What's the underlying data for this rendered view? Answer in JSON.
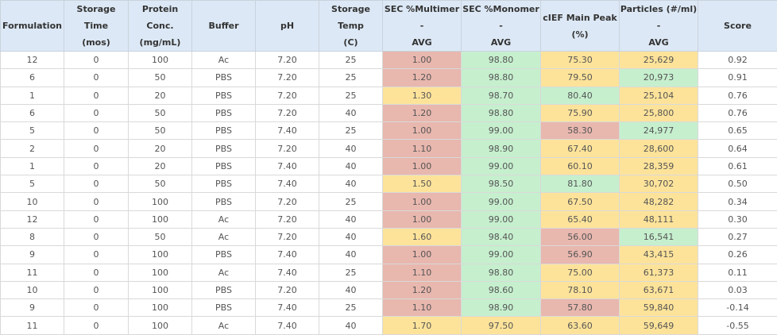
{
  "table": {
    "header": [
      [
        "Formulation"
      ],
      [
        "Storage Time",
        "(mos)"
      ],
      [
        "Protein Conc.",
        "(mg/mL)"
      ],
      [
        "Buffer"
      ],
      [
        "pH"
      ],
      [
        "Storage Temp",
        "(C)"
      ],
      [
        "SEC %Multimer -",
        "AVG"
      ],
      [
        "SEC %Monomer -",
        "AVG"
      ],
      [
        "cIEF Main Peak",
        "(%)"
      ],
      [
        "Particles (#/ml) -",
        "AVG"
      ],
      [
        "Score"
      ]
    ],
    "rows": [
      [
        "12",
        "0",
        "100",
        "Ac",
        "7.20",
        "25",
        "1.00",
        "98.80",
        "75.30",
        "25,629",
        "0.92"
      ],
      [
        "6",
        "0",
        "50",
        "PBS",
        "7.20",
        "25",
        "1.20",
        "98.80",
        "79.50",
        "20,973",
        "0.91"
      ],
      [
        "1",
        "0",
        "20",
        "PBS",
        "7.20",
        "25",
        "1.30",
        "98.70",
        "80.40",
        "25,104",
        "0.76"
      ],
      [
        "6",
        "0",
        "50",
        "PBS",
        "7.20",
        "40",
        "1.20",
        "98.80",
        "75.90",
        "25,800",
        "0.76"
      ],
      [
        "5",
        "0",
        "50",
        "PBS",
        "7.40",
        "25",
        "1.00",
        "99.00",
        "58.30",
        "24,977",
        "0.65"
      ],
      [
        "2",
        "0",
        "20",
        "PBS",
        "7.20",
        "40",
        "1.10",
        "98.90",
        "67.40",
        "28,600",
        "0.64"
      ],
      [
        "1",
        "0",
        "20",
        "PBS",
        "7.40",
        "40",
        "1.00",
        "99.00",
        "60.10",
        "28,359",
        "0.61"
      ],
      [
        "5",
        "0",
        "50",
        "PBS",
        "7.40",
        "40",
        "1.50",
        "98.50",
        "81.80",
        "30,702",
        "0.50"
      ],
      [
        "10",
        "0",
        "100",
        "PBS",
        "7.20",
        "25",
        "1.00",
        "99.00",
        "67.50",
        "48,282",
        "0.34"
      ],
      [
        "12",
        "0",
        "100",
        "Ac",
        "7.20",
        "40",
        "1.00",
        "99.00",
        "65.40",
        "48,111",
        "0.30"
      ],
      [
        "8",
        "0",
        "50",
        "Ac",
        "7.20",
        "40",
        "1.60",
        "98.40",
        "56.00",
        "16,541",
        "0.27"
      ],
      [
        "9",
        "0",
        "100",
        "PBS",
        "7.40",
        "40",
        "1.00",
        "99.00",
        "56.90",
        "43,415",
        "0.26"
      ],
      [
        "11",
        "0",
        "100",
        "Ac",
        "7.40",
        "25",
        "1.10",
        "98.80",
        "75.00",
        "61,373",
        "0.11"
      ],
      [
        "10",
        "0",
        "100",
        "PBS",
        "7.20",
        "40",
        "1.20",
        "98.60",
        "78.10",
        "63,671",
        "0.03"
      ],
      [
        "9",
        "0",
        "100",
        "PBS",
        "7.40",
        "25",
        "1.10",
        "98.90",
        "57.80",
        "59,840",
        "-0.14"
      ],
      [
        "11",
        "0",
        "100",
        "Ac",
        "7.40",
        "40",
        "1.70",
        "97.50",
        "63.60",
        "59,649",
        "-0.55"
      ]
    ],
    "fills": [
      [
        "#e8b7ae",
        "#c6efce",
        "#fde39a",
        "#fde39a"
      ],
      [
        "#e8b7ae",
        "#c6efce",
        "#fde39a",
        "#c6efce"
      ],
      [
        "#fde39a",
        "#c6efce",
        "#c6efce",
        "#fde39a"
      ],
      [
        "#e8b7ae",
        "#c6efce",
        "#fde39a",
        "#fde39a"
      ],
      [
        "#e8b7ae",
        "#c6efce",
        "#e8b7ae",
        "#c6efce"
      ],
      [
        "#e8b7ae",
        "#c6efce",
        "#fde39a",
        "#fde39a"
      ],
      [
        "#e8b7ae",
        "#c6efce",
        "#fde39a",
        "#fde39a"
      ],
      [
        "#fde39a",
        "#c6efce",
        "#c6efce",
        "#fde39a"
      ],
      [
        "#e8b7ae",
        "#c6efce",
        "#fde39a",
        "#fde39a"
      ],
      [
        "#e8b7ae",
        "#c6efce",
        "#fde39a",
        "#fde39a"
      ],
      [
        "#fde39a",
        "#c6efce",
        "#e8b7ae",
        "#c6efce"
      ],
      [
        "#e8b7ae",
        "#c6efce",
        "#e8b7ae",
        "#fde39a"
      ],
      [
        "#e8b7ae",
        "#c6efce",
        "#fde39a",
        "#fde39a"
      ],
      [
        "#e8b7ae",
        "#c6efce",
        "#fde39a",
        "#fde39a"
      ],
      [
        "#e8b7ae",
        "#c6efce",
        "#e8b7ae",
        "#fde39a"
      ],
      [
        "#fde39a",
        "#fde39a",
        "#fde39a",
        "#fde39a"
      ]
    ]
  }
}
